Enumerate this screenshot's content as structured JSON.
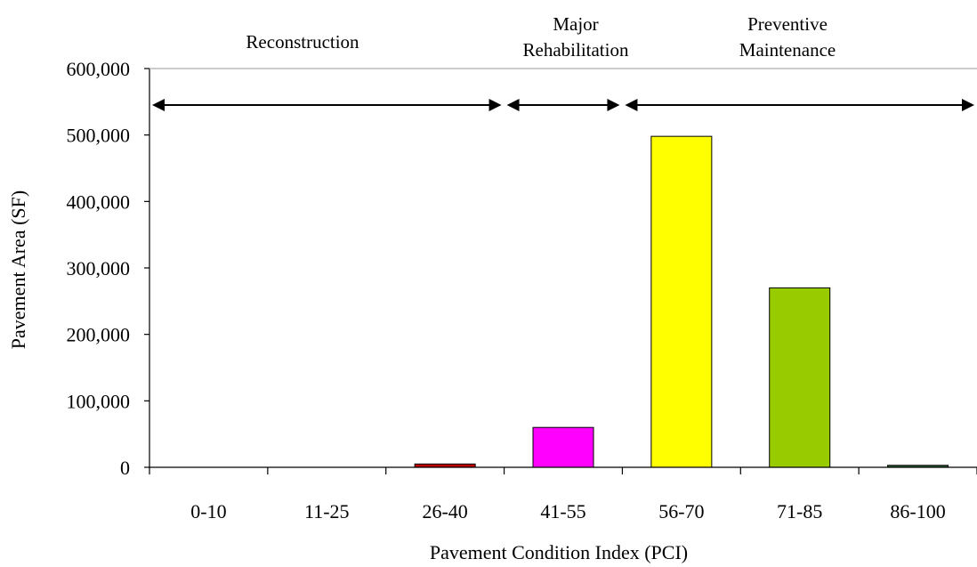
{
  "chart_data": {
    "type": "bar",
    "categories": [
      "0-10",
      "11-25",
      "26-40",
      "41-55",
      "56-70",
      "71-85",
      "86-100"
    ],
    "values": [
      0,
      0,
      5000,
      60000,
      498000,
      270000,
      3000
    ],
    "bar_colors": [
      "#ff0000",
      "#ff0000",
      "#c00000",
      "#ff00ff",
      "#ffff00",
      "#99cc00",
      "#336633"
    ],
    "xlabel": "Pavement Condition Index (PCI)",
    "ylabel": "Pavement Area (SF)",
    "ylim": [
      0,
      600000
    ],
    "y_ticks": [
      0,
      100000,
      200000,
      300000,
      400000,
      500000,
      600000
    ],
    "y_tick_labels": [
      "0",
      "100,000",
      "200,000",
      "300,000",
      "400,000",
      "500,000",
      "600,000"
    ],
    "grid": false,
    "legend": "none",
    "annotations": [
      {
        "lines": [
          "Reconstruction"
        ],
        "span": [
          "0-10",
          "26-40"
        ]
      },
      {
        "lines": [
          "Major",
          "Rehabilitation"
        ],
        "span": [
          "41-55",
          "41-55"
        ]
      },
      {
        "lines": [
          "Preventive",
          "Maintenance"
        ],
        "span": [
          "56-70",
          "86-100"
        ]
      }
    ]
  }
}
